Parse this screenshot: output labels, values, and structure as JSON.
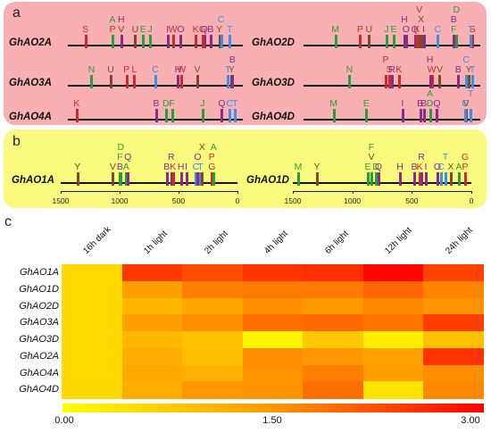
{
  "panel_a": {
    "label": "a",
    "genes": [
      {
        "name": "GhAO2A",
        "row": 0,
        "col": 0,
        "sites": [
          [
            "S",
            0.1
          ],
          [
            "P",
            0.255
          ],
          [
            "A",
            0.255
          ],
          [
            "V",
            0.305
          ],
          [
            "H",
            0.305
          ],
          [
            "U",
            0.385
          ],
          [
            "E",
            0.43
          ],
          [
            "J",
            0.47
          ],
          [
            "I",
            0.57
          ],
          [
            "W",
            0.6
          ],
          [
            "O",
            0.645
          ],
          [
            "K",
            0.73
          ],
          [
            "Q",
            0.78
          ],
          [
            "G",
            0.77
          ],
          [
            "B",
            0.815
          ],
          [
            "Y",
            0.865
          ],
          [
            "C",
            0.875
          ],
          [
            "T",
            0.925
          ]
        ]
      },
      {
        "name": "GhAO2D",
        "row": 0,
        "col": 1,
        "sites": [
          [
            "M",
            0.18
          ],
          [
            "P",
            0.32
          ],
          [
            "U",
            0.37
          ],
          [
            "J",
            0.47
          ],
          [
            "E",
            0.51
          ],
          [
            "O",
            0.58
          ],
          [
            "H",
            0.57
          ],
          [
            "Q",
            0.63
          ],
          [
            "K",
            0.64
          ],
          [
            "X",
            0.665
          ],
          [
            "V",
            0.655
          ],
          [
            "I",
            0.68
          ],
          [
            "C",
            0.76
          ],
          [
            "F",
            0.85
          ],
          [
            "B",
            0.85
          ],
          [
            "D",
            0.865
          ],
          [
            "S",
            0.955
          ],
          [
            "T",
            0.945
          ]
        ]
      },
      {
        "name": "GhAO3A",
        "row": 1,
        "col": 0,
        "sites": [
          [
            "N",
            0.135
          ],
          [
            "U",
            0.245
          ],
          [
            "P",
            0.335
          ],
          [
            "L",
            0.38
          ],
          [
            "C",
            0.5
          ],
          [
            "W",
            0.65
          ],
          [
            "H",
            0.63
          ],
          [
            "V",
            0.74
          ],
          [
            "Y",
            0.935
          ],
          [
            "T",
            0.915
          ],
          [
            "B",
            0.94
          ]
        ]
      },
      {
        "name": "GhAO3D",
        "row": 1,
        "col": 1,
        "sites": [
          [
            "N",
            0.26
          ],
          [
            "S",
            0.485
          ],
          [
            "P",
            0.465
          ],
          [
            "R",
            0.5
          ],
          [
            "K",
            0.54
          ],
          [
            "W",
            0.725
          ],
          [
            "H",
            0.715
          ],
          [
            "V",
            0.77
          ],
          [
            "Y",
            0.935
          ],
          [
            "B",
            0.875
          ],
          [
            "C",
            0.92
          ],
          [
            "T",
            0.955
          ]
        ]
      },
      {
        "name": "GhAO4A",
        "row": 2,
        "col": 0,
        "sites": [
          [
            "K",
            0.05
          ],
          [
            "B",
            0.505
          ],
          [
            "D",
            0.56
          ],
          [
            "F",
            0.595
          ],
          [
            "J",
            0.77
          ],
          [
            "Q",
            0.88
          ],
          [
            "C",
            0.925
          ],
          [
            "T",
            0.955
          ]
        ]
      },
      {
        "name": "GhAO4D",
        "row": 2,
        "col": 1,
        "sites": [
          [
            "M",
            0.17
          ],
          [
            "E",
            0.355
          ],
          [
            "I",
            0.56
          ],
          [
            "B",
            0.66
          ],
          [
            "B",
            0.68
          ],
          [
            "D",
            0.715
          ],
          [
            "A",
            0.715
          ],
          [
            "Q",
            0.755
          ],
          [
            "V",
            0.92
          ],
          [
            "C",
            0.915
          ],
          [
            "T",
            0.945
          ]
        ]
      }
    ]
  },
  "panel_b": {
    "label": "b",
    "genes": [
      {
        "name": "GhAO1A",
        "col": 0,
        "sites": [
          [
            "Y",
            0.095
          ],
          [
            "V",
            0.295
          ],
          [
            "B",
            0.335
          ],
          [
            "F",
            0.335
          ],
          [
            "D",
            0.34
          ],
          [
            "A",
            0.37
          ],
          [
            "Q",
            0.38
          ],
          [
            "B",
            0.6
          ],
          [
            "R",
            0.625
          ],
          [
            "K",
            0.635
          ],
          [
            "H",
            0.68
          ],
          [
            "I",
            0.71
          ],
          [
            "C",
            0.765
          ],
          [
            "T",
            0.79
          ],
          [
            "O",
            0.775
          ],
          [
            "X",
            0.8
          ],
          [
            "G",
            0.855
          ],
          [
            "P",
            0.855
          ],
          [
            "A",
            0.865
          ]
        ]
      },
      {
        "name": "GhAO1D",
        "col": 1,
        "sites": [
          [
            "M",
            0.03
          ],
          [
            "Y",
            0.135
          ],
          [
            "E",
            0.42
          ],
          [
            "V",
            0.44
          ],
          [
            "F",
            0.44
          ],
          [
            "D",
            0.465
          ],
          [
            "Q",
            0.48
          ],
          [
            "H",
            0.6
          ],
          [
            "B",
            0.68
          ],
          [
            "K",
            0.71
          ],
          [
            "R",
            0.72
          ],
          [
            "I",
            0.745
          ],
          [
            "O",
            0.81
          ],
          [
            "C",
            0.83
          ],
          [
            "T",
            0.855
          ],
          [
            "X",
            0.885
          ],
          [
            "A",
            0.93
          ],
          [
            "P",
            0.965
          ],
          [
            "G",
            0.965
          ]
        ]
      }
    ],
    "axis_ticks": [
      "1500",
      "1000",
      "500",
      "0"
    ]
  },
  "panel_c": {
    "label": "c",
    "columns": [
      "16h dark",
      "1h light",
      "2h light",
      "4h light",
      "6h light",
      "12h light",
      "24h light"
    ],
    "rows": [
      "GhAO1A",
      "GhAO1D",
      "GhAO2D",
      "GhAO3A",
      "GhAO3D",
      "GhAO2A",
      "GhAO4A",
      "GhAO4D"
    ],
    "values": [
      [
        0.55,
        2.45,
        2.25,
        2.5,
        2.55,
        2.95,
        2.35
      ],
      [
        0.55,
        1.4,
        1.75,
        1.8,
        1.8,
        2.0,
        1.7
      ],
      [
        0.55,
        1.05,
        1.3,
        1.6,
        1.45,
        1.65,
        1.55
      ],
      [
        0.55,
        1.4,
        1.6,
        1.9,
        1.95,
        1.85,
        2.4
      ],
      [
        0.55,
        1.0,
        0.9,
        0.15,
        0.8,
        0.25,
        0.9
      ],
      [
        0.55,
        1.2,
        0.95,
        1.6,
        1.5,
        1.35,
        2.5
      ],
      [
        0.55,
        1.25,
        1.15,
        1.55,
        1.75,
        1.4,
        1.6
      ],
      [
        0.55,
        1.2,
        1.5,
        1.55,
        1.9,
        0.4,
        1.65
      ]
    ],
    "colorbar": {
      "min": "0.00",
      "mid": "1.50",
      "max": "3.00",
      "colors": [
        "#ffff00",
        "#ff9800",
        "#ff0000"
      ]
    }
  },
  "colors": {
    "A": "#2a9d3a",
    "B": "#8a2a8a",
    "C": "#3a8ee8",
    "D": "#2a9d3a",
    "E": "#2a9d3a",
    "F": "#2a9d3a",
    "G": "#cc2a2a",
    "H": "#8a2a8a",
    "I": "#8a2a8a",
    "J": "#2a9d3a",
    "K": "#cc2a2a",
    "L": "#cc2a2a",
    "M": "#2a9d3a",
    "N": "#2a9d3a",
    "O": "#8a2a8a",
    "P": "#cc2a2a",
    "Q": "#8a2a8a",
    "R": "#8a2a8a",
    "S": "#cc2a2a",
    "T": "#3a8ee8",
    "U": "#7a4a2a",
    "V": "#7a4a2a",
    "W": "#cc2a2a",
    "X": "#7a4a2a",
    "Y": "#7a4a2a"
  }
}
